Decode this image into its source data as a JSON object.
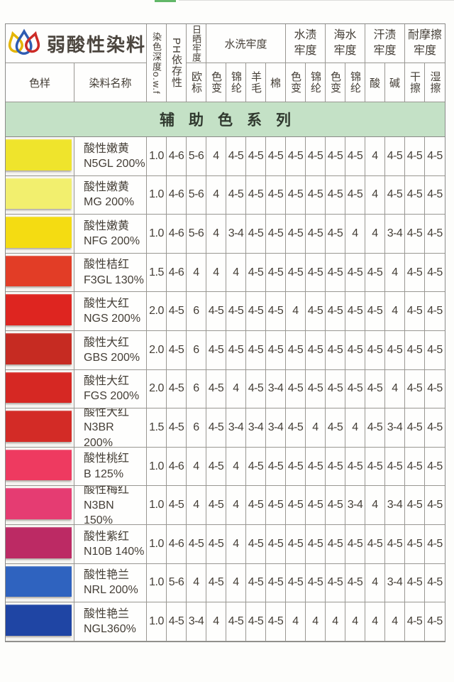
{
  "brand": {
    "title": "弱酸性染料"
  },
  "banner": {
    "text": "辅助色系列"
  },
  "colors": {
    "banner_green": "#c4e1c6",
    "grid_line": "#999792",
    "scan_mark_green": "#62b768"
  },
  "table": {
    "corner_sample": "色样",
    "corner_name": "染料名称",
    "col_depth": "染色深度o.w.f",
    "col_ph": "PH依存性",
    "groups": [
      {
        "label": "日晒牢度",
        "subs": [
          "欧标"
        ]
      },
      {
        "label": "水洗牢度",
        "subs": [
          "色变",
          "锦纶",
          "羊毛",
          "棉"
        ]
      },
      {
        "label": "水渍牢度",
        "subs": [
          "色变",
          "锦纶"
        ]
      },
      {
        "label": "海水牢度",
        "subs": [
          "色变",
          "锦纶"
        ]
      },
      {
        "label": "汗渍牢度",
        "subs": [
          "酸",
          "碱"
        ]
      },
      {
        "label": "耐摩擦牢度",
        "subs": [
          "干擦",
          "湿擦"
        ]
      }
    ],
    "rows": [
      {
        "swatch": "#efe42c",
        "name_cn": "酸性嫩黄",
        "name_code": "N5GL 200%",
        "values": [
          "1.0",
          "4-6",
          "5-6",
          "4",
          "4-5",
          "4-5",
          "4-5",
          "4-5",
          "4-5",
          "4-5",
          "4-5",
          "4",
          "4-5",
          "4-5",
          "4-5"
        ]
      },
      {
        "swatch": "#f2ef6e",
        "name_cn": "酸性嫩黄",
        "name_code": "MG 200%",
        "values": [
          "1.0",
          "4-6",
          "5-6",
          "4",
          "4-5",
          "4-5",
          "4-5",
          "4-5",
          "4-5",
          "4-5",
          "4-5",
          "4",
          "4-5",
          "4-5",
          "4-5"
        ]
      },
      {
        "swatch": "#f4dc12",
        "name_cn": "酸性嫩黄",
        "name_code": "NFG 200%",
        "values": [
          "1.0",
          "4-6",
          "5-6",
          "4",
          "3-4",
          "4-5",
          "4-5",
          "4-5",
          "4-5",
          "4-5",
          "4",
          "4",
          "3-4",
          "4-5",
          "4-5"
        ]
      },
      {
        "swatch": "#e23d26",
        "name_cn": "酸性桔红",
        "name_code": "F3GL 130%",
        "values": [
          "1.5",
          "4-6",
          "4",
          "4",
          "4",
          "4-5",
          "4-5",
          "4-5",
          "4-5",
          "4-5",
          "4-5",
          "4-5",
          "4",
          "4-5",
          "4-5"
        ]
      },
      {
        "swatch": "#de2520",
        "name_cn": "酸性大红",
        "name_code": "NGS 200%",
        "values": [
          "2.0",
          "4-5",
          "6",
          "4-5",
          "4-5",
          "4-5",
          "4-5",
          "4",
          "4-5",
          "4-5",
          "4-5",
          "4-5",
          "4",
          "4-5",
          "4-5"
        ]
      },
      {
        "swatch": "#c62b22",
        "name_cn": "酸性大红",
        "name_code": "GBS 200%",
        "values": [
          "2.0",
          "4-5",
          "6",
          "4-5",
          "4-5",
          "4-5",
          "4-5",
          "4-5",
          "4-5",
          "4-5",
          "4-5",
          "4-5",
          "4-5",
          "4-5",
          "4-5"
        ]
      },
      {
        "swatch": "#d62823",
        "name_cn": "酸性大红",
        "name_code": "FGS 200%",
        "values": [
          "2.0",
          "4-5",
          "6",
          "4-5",
          "4",
          "4-5",
          "3-4",
          "4-5",
          "4-5",
          "4-5",
          "4-5",
          "4-5",
          "4",
          "4-5",
          "4-5"
        ]
      },
      {
        "swatch": "#d32b26",
        "name_cn": "酸性大红",
        "name_code": "N3BR 200%",
        "values": [
          "1.5",
          "4-5",
          "6",
          "4-5",
          "3-4",
          "3-4",
          "3-4",
          "4-5",
          "4",
          "4-5",
          "4",
          "4-5",
          "3-4",
          "4-5",
          "4-5"
        ]
      },
      {
        "swatch": "#ee3a60",
        "name_cn": "酸性桃红",
        "name_code": "B 125%",
        "values": [
          "1.0",
          "4-6",
          "4",
          "4-5",
          "4",
          "4-5",
          "4-5",
          "4-5",
          "4-5",
          "4-5",
          "4-5",
          "4-5",
          "4-5",
          "4-5",
          "4-5"
        ]
      },
      {
        "swatch": "#e53c72",
        "name_cn": "酸性梅红",
        "name_code": "N3BN 150%",
        "values": [
          "1.0",
          "4-5",
          "4",
          "4-5",
          "4",
          "4-5",
          "4-5",
          "4-5",
          "4-5",
          "4-5",
          "3-4",
          "4",
          "3-4",
          "4-5",
          "4-5"
        ]
      },
      {
        "swatch": "#bc2a64",
        "name_cn": "酸性紫红",
        "name_code": "N10B 140%",
        "values": [
          "1.0",
          "4-6",
          "4-5",
          "4-5",
          "4",
          "4-5",
          "4-5",
          "4-5",
          "4-5",
          "4-5",
          "4-5",
          "4-5",
          "4-5",
          "4-5",
          "4-5"
        ]
      },
      {
        "swatch": "#2f63bf",
        "name_cn": "酸性艳兰",
        "name_code": "NRL 200%",
        "values": [
          "1.0",
          "5-6",
          "4",
          "4-5",
          "4",
          "4-5",
          "4-5",
          "4-5",
          "4-5",
          "4-5",
          "4-5",
          "4",
          "3-4",
          "4-5",
          "4-5"
        ]
      },
      {
        "swatch": "#1f45a4",
        "name_cn": "酸性艳兰",
        "name_code": "NGL360%",
        "values": [
          "1.0",
          "4-5",
          "3-4",
          "4",
          "4-5",
          "4-5",
          "4-5",
          "4",
          "4",
          "4",
          "4",
          "4",
          "4",
          "4-5",
          "4-5"
        ]
      }
    ]
  }
}
